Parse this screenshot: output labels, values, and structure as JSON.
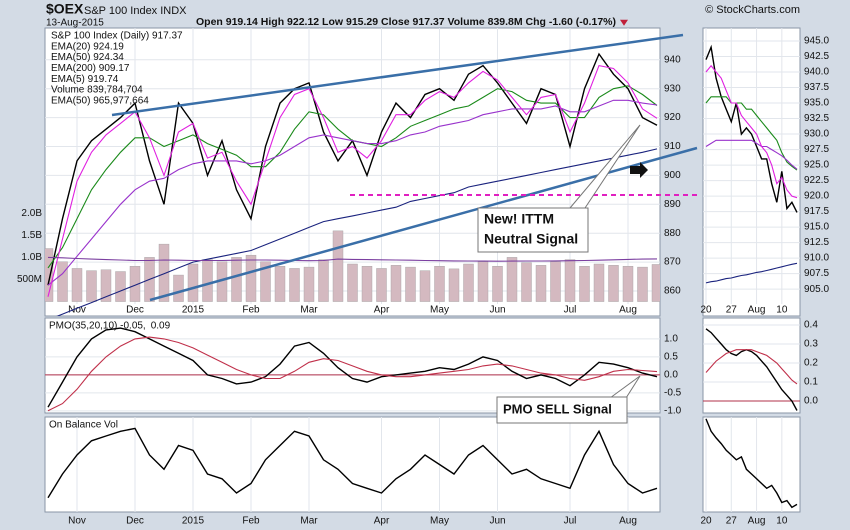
{
  "header": {
    "symbol": "$OEX",
    "name": "S&P 100 Index INDX",
    "date": "13-Aug-2015",
    "quote": "Open 919.14 High 922.12 Low 915.29 Close 917.37 Volume 839.8M Chg -1.60 (-0.17%)",
    "watermark": "© StockCharts.com"
  },
  "annotations": [
    {
      "lines": [
        "New! ITTM",
        "Neutral Signal"
      ]
    },
    {
      "lines": [
        "PMO SELL Signal"
      ]
    }
  ],
  "chart_data": [
    {
      "type": "line",
      "legend": "stack",
      "categories": [
        null,
        null,
        "Nov",
        null,
        null,
        null,
        "Dec",
        null,
        null,
        null,
        "2015",
        null,
        null,
        null,
        "Feb",
        null,
        null,
        null,
        "Mar",
        null,
        null,
        null,
        null,
        "Apr",
        null,
        null,
        null,
        "May",
        null,
        null,
        null,
        "Jun",
        null,
        null,
        null,
        null,
        "Jul",
        null,
        null,
        null,
        "Aug",
        null,
        null
      ],
      "ylim": [
        855.5,
        951
      ],
      "yticks": [
        860,
        870,
        880,
        890,
        900,
        910,
        920,
        930,
        940
      ],
      "y2lim": [
        -55000000,
        6190000000
      ],
      "y2ticks": [
        {
          "value": 500000000,
          "label": "500M"
        },
        {
          "value": 1000000000,
          "label": "1.0B"
        },
        {
          "value": 1500000000,
          "label": "1.5B"
        },
        {
          "value": 2000000000,
          "label": "2.0B"
        }
      ],
      "grid": true,
      "series": [
        {
          "name": "S&P 100 Index (Daily) 917.37",
          "color": "#000000",
          "values": [
            862,
            885,
            905,
            912,
            916,
            920,
            925,
            905,
            890,
            925,
            918,
            900,
            912,
            895,
            885,
            910,
            925,
            930,
            932,
            915,
            905,
            912,
            900,
            915,
            925,
            920,
            928,
            930,
            926,
            935,
            938,
            932,
            925,
            918,
            930,
            928,
            910,
            930,
            942,
            935,
            930,
            920,
            917.37
          ]
        },
        {
          "name": "EMA(20) 924.19",
          "color": "#1a8a1a",
          "values": [
            868,
            875,
            885,
            895,
            902,
            908,
            913,
            913,
            910,
            912,
            914,
            911,
            909,
            907,
            903,
            903,
            908,
            916,
            922,
            921,
            916,
            912,
            911,
            910,
            913,
            917,
            919,
            921,
            923,
            924,
            927,
            930,
            929,
            926,
            925,
            925,
            920,
            920,
            927,
            930,
            931,
            928,
            924.19
          ]
        },
        {
          "name": "EMA(50) 924.34",
          "color": "#9933cc",
          "values": [
            862,
            866,
            872,
            878,
            884,
            890,
            895,
            898,
            899,
            902,
            904,
            905,
            905,
            905,
            904,
            905,
            907,
            910,
            913,
            914,
            913,
            912,
            911,
            911,
            912,
            914,
            915,
            917,
            918,
            919,
            921,
            922,
            923,
            923,
            923,
            924,
            922,
            922,
            924,
            926,
            926,
            925,
            924.34
          ]
        },
        {
          "name": "EMA(200) 909.17",
          "color": "#1a237e",
          "values": [
            850,
            852,
            854,
            856,
            858,
            860,
            862,
            864,
            866,
            868,
            870,
            871,
            872,
            873,
            874,
            876,
            878,
            880,
            882,
            884,
            885,
            886,
            887,
            888,
            889,
            891,
            892,
            893,
            894,
            896,
            897,
            898,
            899,
            900,
            901,
            902,
            903,
            904,
            905,
            906,
            907,
            908,
            909.17
          ]
        },
        {
          "name": "EMA(5) 919.74",
          "color": "#e020e0",
          "values": [
            858,
            878,
            898,
            908,
            914,
            918,
            922,
            913,
            900,
            915,
            918,
            906,
            908,
            898,
            890,
            905,
            920,
            928,
            930,
            920,
            908,
            910,
            906,
            912,
            921,
            921,
            926,
            929,
            927,
            932,
            936,
            933,
            927,
            921,
            927,
            928,
            915,
            925,
            938,
            937,
            932,
            923,
            919.74
          ]
        },
        {
          "name": "Volume 839,784,704",
          "type": "bar",
          "axis": "y2",
          "color": "#d4b9c0",
          "values": [
            1200000000,
            900000000,
            750000000,
            700000000,
            720000000,
            680000000,
            800000000,
            1000000000,
            1300000000,
            600000000,
            850000000,
            950000000,
            900000000,
            1000000000,
            1050000000,
            900000000,
            800000000,
            750000000,
            780000000,
            950000000,
            1600000000,
            850000000,
            800000000,
            750000000,
            820000000,
            780000000,
            700000000,
            800000000,
            740000000,
            850000000,
            900000000,
            800000000,
            1000000000,
            880000000,
            820000000,
            900000000,
            950000000,
            800000000,
            850000000,
            820000000,
            800000000,
            780000000,
            839784704
          ]
        },
        {
          "name": "EMA(50) 965,977,664",
          "axis": "y2",
          "color": "#7b3fa0",
          "values": [
            1000000000,
            990000000,
            975000000,
            960000000,
            950000000,
            940000000,
            930000000,
            930000000,
            940000000,
            935000000,
            930000000,
            930000000,
            930000000,
            935000000,
            940000000,
            940000000,
            935000000,
            930000000,
            925000000,
            930000000,
            960000000,
            955000000,
            950000000,
            945000000,
            940000000,
            935000000,
            930000000,
            925000000,
            920000000,
            918000000,
            916000000,
            914000000,
            915000000,
            917000000,
            918000000,
            920000000,
            925000000,
            930000000,
            935000000,
            945000000,
            955000000,
            960000000,
            965977664
          ]
        }
      ]
    },
    {
      "type": "line",
      "categories": [
        "20",
        null,
        null,
        null,
        null,
        "27",
        null,
        null,
        null,
        null,
        "Aug",
        null,
        null,
        null,
        null,
        "10",
        null,
        null,
        null
      ],
      "ylim": [
        902.6,
        947.1
      ],
      "yticks": [
        {
          "value": 905,
          "label": "905.0"
        },
        {
          "value": 907.5,
          "label": "907.5"
        },
        {
          "value": 910,
          "label": "910.0"
        },
        {
          "value": 912.5,
          "label": "912.5"
        },
        {
          "value": 915,
          "label": "915.0"
        },
        {
          "value": 917.5,
          "label": "917.5"
        },
        {
          "value": 920,
          "label": "920.0"
        },
        {
          "value": 922.5,
          "label": "922.5"
        },
        {
          "value": 925,
          "label": "925.0"
        },
        {
          "value": 927.5,
          "label": "927.5"
        },
        {
          "value": 930,
          "label": "930.0"
        },
        {
          "value": 932.5,
          "label": "932.5"
        },
        {
          "value": 935,
          "label": "935.0"
        },
        {
          "value": 937.5,
          "label": "937.5"
        },
        {
          "value": 940,
          "label": "940.0"
        },
        {
          "value": 942.5,
          "label": "942.5"
        },
        {
          "value": 945,
          "label": "945.0"
        }
      ],
      "grid": true,
      "series": [
        {
          "color": "#000000",
          "values": [
            942,
            944,
            939,
            936,
            934,
            932,
            935,
            930,
            931,
            930,
            928,
            926,
            926,
            922,
            919,
            924,
            918,
            919,
            917.37
          ]
        },
        {
          "color": "#1a8a1a",
          "values": [
            935,
            936,
            936,
            936,
            936,
            935,
            935,
            935,
            934,
            934,
            933,
            932,
            931,
            930,
            929,
            927,
            925.5,
            924.8,
            924.19
          ]
        },
        {
          "color": "#9933cc",
          "values": [
            928,
            928.5,
            929,
            929,
            929,
            929,
            929,
            929,
            929,
            929,
            928.5,
            928,
            928,
            927.5,
            927,
            926.5,
            925.8,
            925,
            924.34
          ]
        },
        {
          "color": "#1a237e",
          "values": [
            906,
            906.2,
            906.3,
            906.5,
            906.7,
            906.8,
            907,
            907.2,
            907.3,
            907.5,
            907.7,
            907.8,
            908,
            908.2,
            908.4,
            908.6,
            908.8,
            909,
            909.17
          ]
        },
        {
          "color": "#e020e0",
          "values": [
            940,
            941,
            940,
            939,
            937,
            935,
            935,
            933,
            932,
            931,
            930,
            928,
            927,
            925,
            922,
            923,
            921,
            920,
            919.74
          ]
        }
      ]
    },
    {
      "type": "line",
      "legend": "inline",
      "ylim": [
        -1.06,
        1.58
      ],
      "yticks": [
        {
          "value": 1,
          "label": "1.0"
        },
        0.5,
        {
          "value": 0,
          "label": "0.0"
        },
        -0.5,
        {
          "value": -1,
          "label": "-1.0"
        }
      ],
      "grid": true,
      "baseline": 0,
      "baseline_color": "#b0304a",
      "series": [
        {
          "name": "PMO(35,20,10) -0.05,",
          "color": "#000000",
          "values": [
            -0.9,
            -0.2,
            0.5,
            1.0,
            1.25,
            1.3,
            1.2,
            1.0,
            0.8,
            0.6,
            0.4,
            0.0,
            -0.1,
            -0.25,
            -0.2,
            -0.05,
            0.3,
            0.8,
            0.9,
            0.6,
            0.2,
            -0.1,
            -0.2,
            -0.05,
            0.0,
            0.05,
            0.1,
            0.2,
            0.15,
            0.3,
            0.5,
            0.4,
            0.1,
            -0.1,
            0.0,
            -0.1,
            -0.3,
            0.0,
            0.35,
            0.3,
            0.2,
            0.05,
            -0.05
          ]
        },
        {
          "name": "0.09",
          "color": "#c0304a",
          "values": [
            -1.0,
            -0.8,
            -0.4,
            0.1,
            0.5,
            0.8,
            1.0,
            1.05,
            1.0,
            0.9,
            0.75,
            0.55,
            0.35,
            0.15,
            0.0,
            -0.1,
            -0.1,
            0.1,
            0.35,
            0.45,
            0.4,
            0.25,
            0.1,
            0.0,
            -0.05,
            -0.05,
            0.0,
            0.05,
            0.1,
            0.15,
            0.25,
            0.3,
            0.25,
            0.15,
            0.05,
            0.0,
            -0.1,
            -0.15,
            -0.05,
            0.1,
            0.15,
            0.12,
            0.09
          ]
        }
      ]
    },
    {
      "type": "line",
      "ylim": [
        -0.063,
        0.437
      ],
      "yticks": [
        0.4,
        0.3,
        0.2,
        0.1,
        {
          "value": 0,
          "label": "0.0"
        }
      ],
      "grid": true,
      "baseline": 0,
      "baseline_color": "#b0304a",
      "series": [
        {
          "color": "#000000",
          "values": [
            0.38,
            0.36,
            0.33,
            0.3,
            0.27,
            0.25,
            0.24,
            0.26,
            0.27,
            0.26,
            0.24,
            0.21,
            0.18,
            0.14,
            0.1,
            0.06,
            0.03,
            0.0,
            -0.05
          ]
        },
        {
          "color": "#c0304a",
          "values": [
            0.15,
            0.18,
            0.21,
            0.23,
            0.25,
            0.26,
            0.27,
            0.27,
            0.27,
            0.27,
            0.26,
            0.25,
            0.24,
            0.22,
            0.2,
            0.17,
            0.14,
            0.11,
            0.09
          ]
        }
      ]
    },
    {
      "type": "line",
      "title": "On Balance Vol",
      "categories": [
        null,
        null,
        "Nov",
        null,
        null,
        null,
        "Dec",
        null,
        null,
        null,
        "2015",
        null,
        null,
        null,
        "Feb",
        null,
        null,
        null,
        "Mar",
        null,
        null,
        null,
        null,
        "Apr",
        null,
        null,
        null,
        "May",
        null,
        null,
        null,
        "Jun",
        null,
        null,
        null,
        null,
        "Jul",
        null,
        null,
        null,
        "Aug",
        null,
        null
      ],
      "ylim": [
        0,
        100
      ],
      "grid": true,
      "series": [
        {
          "color": "#000000",
          "values": [
            15,
            40,
            60,
            75,
            80,
            85,
            88,
            60,
            45,
            70,
            65,
            40,
            35,
            20,
            30,
            55,
            70,
            85,
            80,
            55,
            45,
            30,
            25,
            20,
            35,
            45,
            60,
            50,
            40,
            60,
            70,
            55,
            40,
            45,
            35,
            30,
            25,
            60,
            85,
            50,
            30,
            20,
            25
          ]
        }
      ]
    },
    {
      "type": "line",
      "categories": [
        "20",
        null,
        null,
        null,
        null,
        "27",
        null,
        null,
        null,
        null,
        "Aug",
        null,
        null,
        null,
        null,
        "10",
        null,
        null,
        null
      ],
      "ylim": [
        0,
        100
      ],
      "grid": true,
      "series": [
        {
          "color": "#000000",
          "values": [
            98,
            85,
            78,
            72,
            65,
            60,
            55,
            58,
            45,
            40,
            35,
            30,
            25,
            28,
            20,
            10,
            12,
            5,
            8
          ]
        }
      ]
    }
  ]
}
